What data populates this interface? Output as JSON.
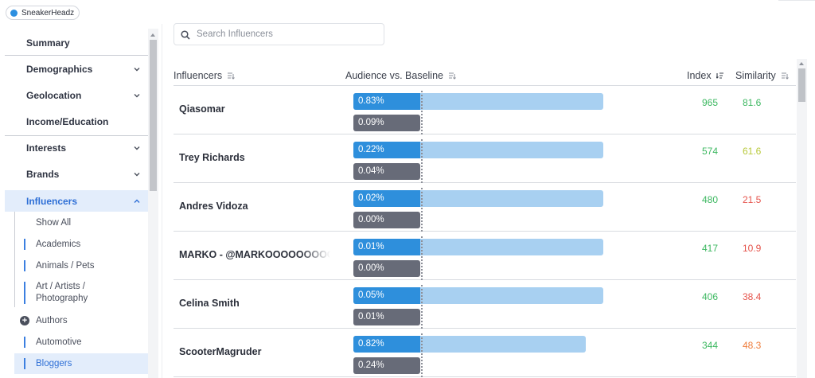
{
  "header": {
    "brand_label": "SneakerHeadz"
  },
  "sidebar": {
    "items": [
      {
        "label": "Summary",
        "chevron": "none"
      },
      {
        "label": "Demographics",
        "chevron": "down"
      },
      {
        "label": "Geolocation",
        "chevron": "down"
      },
      {
        "label": "Income/Education",
        "chevron": "none"
      },
      {
        "label": "Interests",
        "chevron": "down"
      },
      {
        "label": "Brands",
        "chevron": "down"
      },
      {
        "label": "Influencers",
        "chevron": "up",
        "active": true
      }
    ],
    "sub_items": [
      {
        "label": "Show All"
      },
      {
        "label": "Academics"
      },
      {
        "label": "Animals / Pets"
      },
      {
        "label": "Art / Artists / Photography"
      },
      {
        "label": "Authors",
        "icon": "plus-circle-icon"
      },
      {
        "label": "Automotive"
      },
      {
        "label": "Bloggers",
        "active": true
      }
    ]
  },
  "search": {
    "placeholder": "Search Influencers"
  },
  "table": {
    "columns": {
      "influencers": "Influencers",
      "audience": "Audience vs. Baseline",
      "index": "Index",
      "similarity": "Similarity"
    },
    "rows": [
      {
        "name": "Qiasomar",
        "audience": "0.83%",
        "baseline": "0.09%",
        "index": "965",
        "similarity": "81.6",
        "sim_color": "#3db861",
        "bar_fraction": 1.0
      },
      {
        "name": "Trey Richards",
        "audience": "0.22%",
        "baseline": "0.04%",
        "index": "574",
        "similarity": "61.6",
        "sim_color": "#b8c93a",
        "bar_fraction": 1.0
      },
      {
        "name": "Andres Vidoza",
        "audience": "0.02%",
        "baseline": "0.00%",
        "index": "480",
        "similarity": "21.5",
        "sim_color": "#e5534b",
        "bar_fraction": 1.0
      },
      {
        "name": "MARKO - @MARKOOOOOOOOOO",
        "audience": "0.01%",
        "baseline": "0.00%",
        "index": "417",
        "similarity": "10.9",
        "sim_color": "#e5534b",
        "bar_fraction": 1.0
      },
      {
        "name": "Celina Smith",
        "audience": "0.05%",
        "baseline": "0.01%",
        "index": "406",
        "similarity": "38.4",
        "sim_color": "#e5534b",
        "bar_fraction": 1.0
      },
      {
        "name": "ScooterMagruder",
        "audience": "0.82%",
        "baseline": "0.24%",
        "index": "344",
        "similarity": "48.3",
        "sim_color": "#ef7d3c",
        "bar_fraction": 0.93
      }
    ]
  }
}
